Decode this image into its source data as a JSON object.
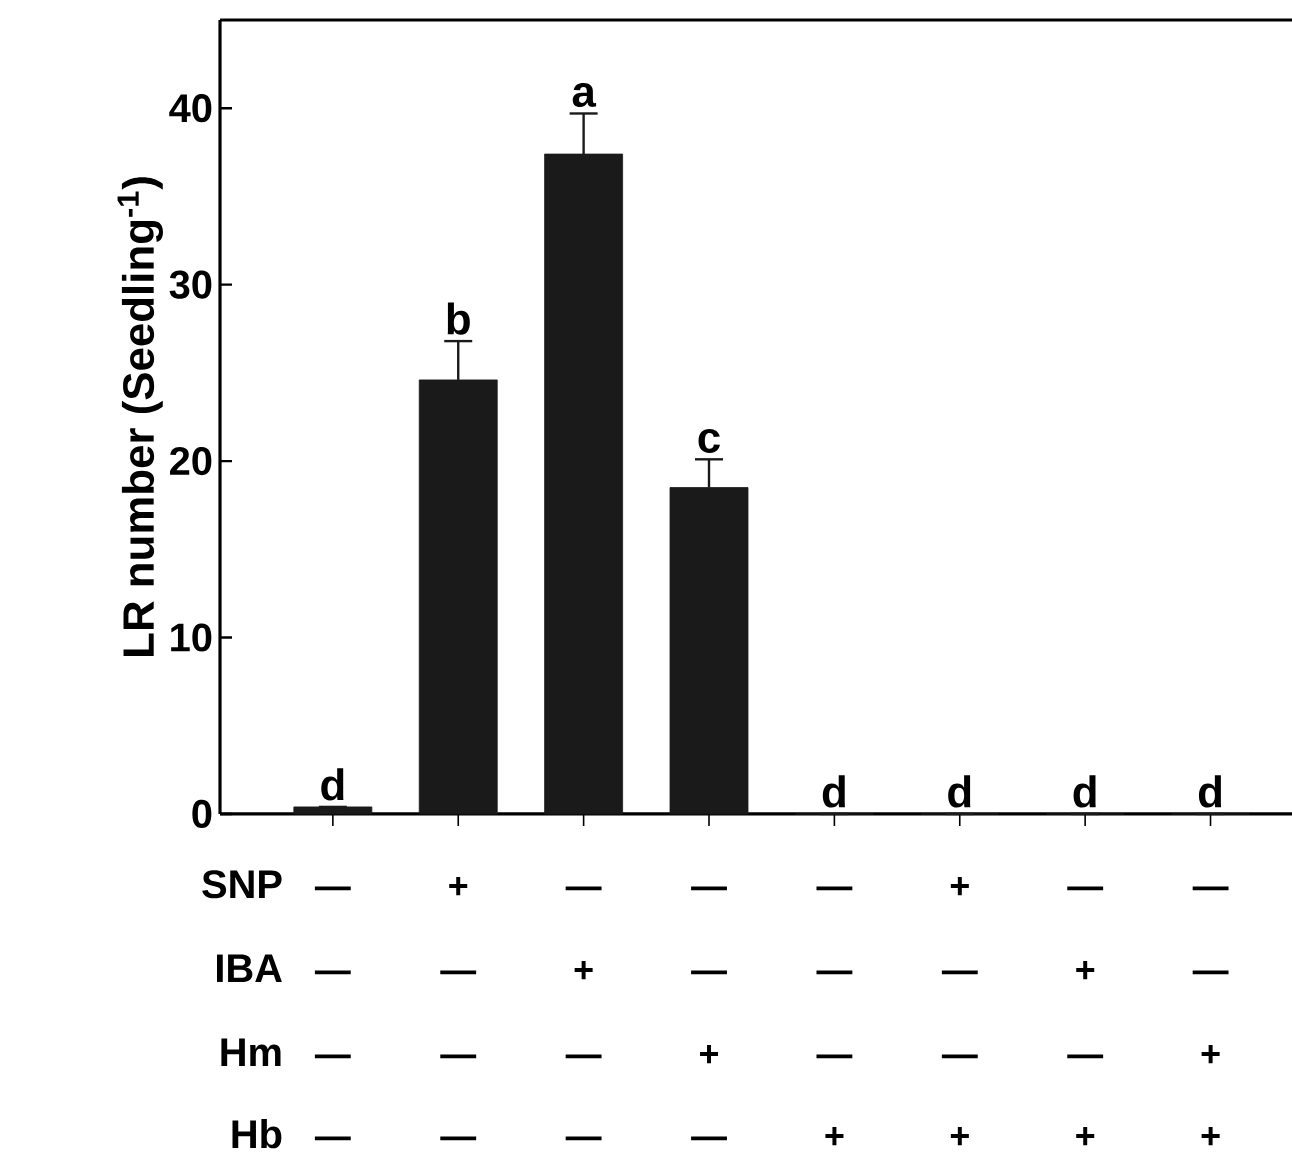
{
  "chart_data": {
    "type": "bar",
    "ylabel": "LR number (Seedling$^{-1}$)",
    "categories": [
      null,
      null,
      null,
      null,
      null,
      null,
      null,
      null
    ],
    "values": [
      0.4,
      24.6,
      37.4,
      18.5,
      0,
      0,
      0,
      0
    ],
    "errors": [
      null,
      2.2,
      2.3,
      1.6,
      null,
      null,
      null,
      null
    ],
    "value_labels": [
      "d",
      "b",
      "a",
      "c",
      "d",
      "d",
      "d",
      "d"
    ],
    "color": "#1a1a1a",
    "ylim": [
      0,
      45
    ],
    "yticks": [
      0,
      10,
      20,
      30,
      40
    ],
    "annotations": [
      "SNP",
      "IBA",
      "Hm",
      "Hb",
      "—",
      "+",
      "—",
      "—",
      "—",
      "+",
      "—",
      "—",
      "—",
      "—",
      "+",
      "—",
      "—",
      "—",
      "+",
      "—",
      "—",
      "—",
      "—",
      "+",
      "—",
      "—",
      "—",
      "+",
      "—",
      "—",
      "—",
      "—",
      "+",
      "+",
      "+",
      "+"
    ]
  }
}
